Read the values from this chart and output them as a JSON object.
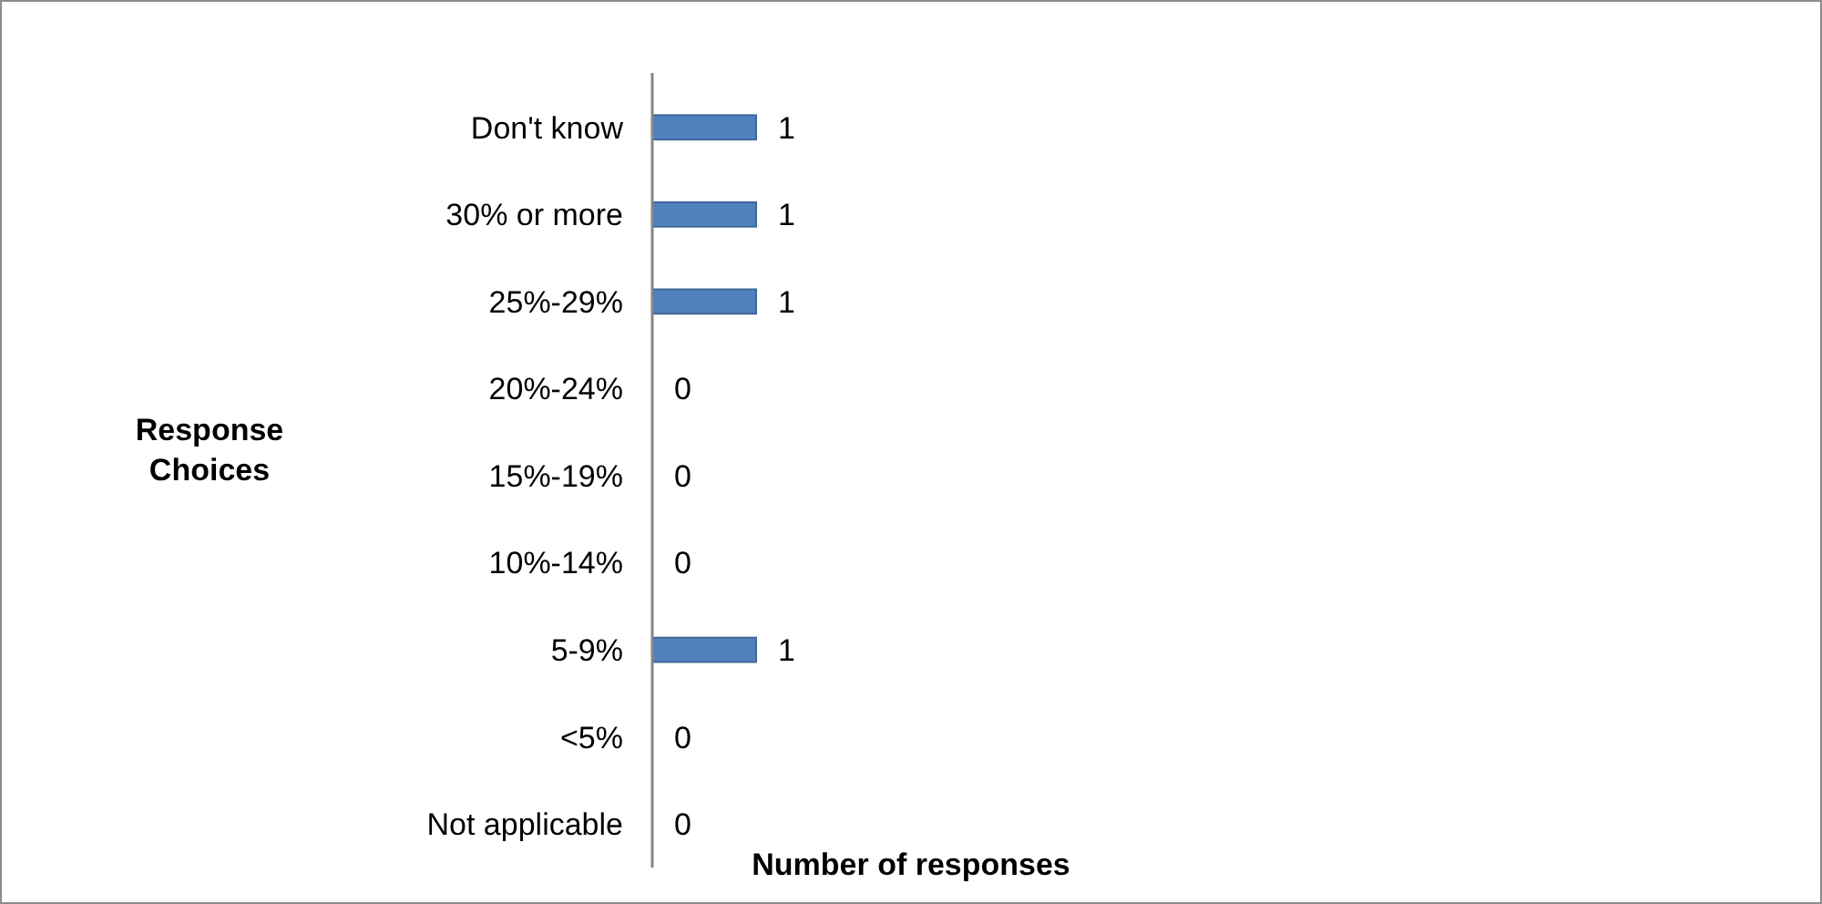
{
  "chart_data": {
    "type": "bar",
    "orientation": "horizontal",
    "categories": [
      "Don't know",
      "30% or more",
      "25%-29%",
      "20%-24%",
      "15%-19%",
      "10%-14%",
      "5-9%",
      "<5%",
      "Not applicable"
    ],
    "values": [
      1,
      1,
      1,
      0,
      0,
      0,
      1,
      0,
      0
    ],
    "color": "#4f81bd",
    "xlabel": "Number of responses",
    "ylabel": "Response Choices",
    "data_labels": true,
    "tick_labels": "y"
  }
}
